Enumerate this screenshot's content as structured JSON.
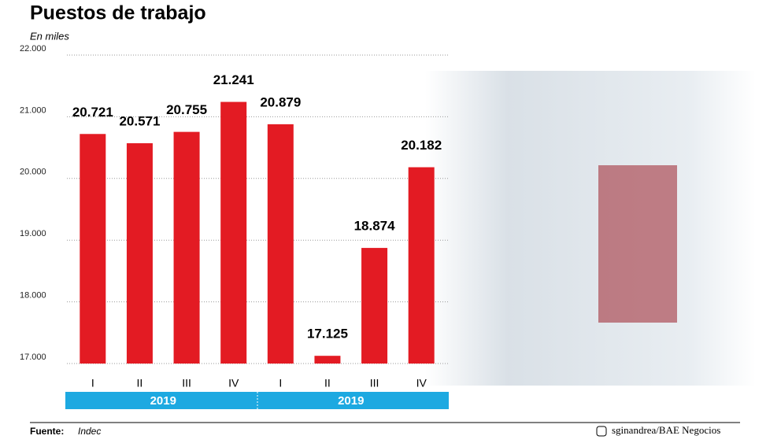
{
  "chart_data": {
    "type": "bar",
    "title": "Puestos de trabajo",
    "subtitle": "En miles",
    "categories": [
      "I",
      "II",
      "III",
      "IV",
      "I",
      "II",
      "III",
      "IV"
    ],
    "values": [
      20721,
      20571,
      20755,
      21241,
      20879,
      17125,
      18874,
      20182
    ],
    "value_labels": [
      "20.721",
      "20.571",
      "20.755",
      "21.241",
      "20.879",
      "17.125",
      "18.874",
      "20.182"
    ],
    "color": "#e31b23",
    "groups": [
      "2019",
      "2019"
    ],
    "ylim": [
      17000,
      22000
    ],
    "yticks": [
      {
        "value": 17000,
        "label": "17.000"
      },
      {
        "value": 18000,
        "label": "18.000"
      },
      {
        "value": 19000,
        "label": "19.000"
      },
      {
        "value": 20000,
        "label": "20.000"
      },
      {
        "value": 21000,
        "label": "21.000"
      },
      {
        "value": 22000,
        "label": "22.000"
      }
    ],
    "grid": true,
    "source_label": "Fuente:",
    "source": "Indec",
    "credit": "sginandrea/BAE Negocios"
  }
}
